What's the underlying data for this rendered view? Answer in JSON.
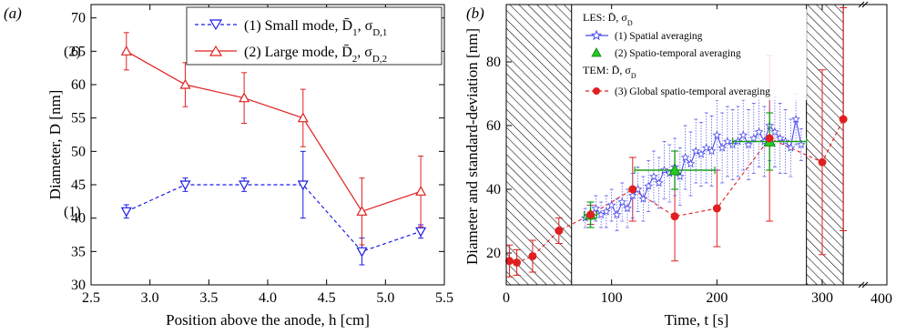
{
  "chart_data": [
    {
      "type": "line",
      "panel_label": "(a)",
      "xlabel": "Position above the anode, h [cm]",
      "ylabel": "Diameter, D [nm]",
      "xlim": [
        2.5,
        5.5
      ],
      "ylim": [
        30,
        72
      ],
      "xticks": [
        "2.5",
        "3.0",
        "3.5",
        "4.0",
        "4.5",
        "5.0",
        "5.5"
      ],
      "yticks": [
        "30",
        "35",
        "40",
        "45",
        "50",
        "55",
        "60",
        "65",
        "70"
      ],
      "grid": false,
      "legend_position": "top-right",
      "series": [
        {
          "name": "(1) Small mode, D̄",
          "name_sub": "1",
          "name_sigma": "σ",
          "name_sigma_sub": "D,1",
          "side_label": "(1)",
          "color": "#1a1ae6",
          "dash": true,
          "marker": "triangle-down",
          "x": [
            2.8,
            3.3,
            3.8,
            4.3,
            4.8,
            5.3
          ],
          "y": [
            41,
            45,
            45,
            45,
            35,
            38
          ],
          "err": [
            1,
            1,
            1,
            5,
            2,
            1
          ]
        },
        {
          "name": "(2) Large mode, D̄",
          "name_sub": "2",
          "name_sigma": "σ",
          "name_sigma_sub": "D,2",
          "side_label": "(2)",
          "color": "#e02020",
          "dash": false,
          "marker": "triangle-up",
          "x": [
            2.8,
            3.3,
            3.8,
            4.3,
            4.8,
            5.3
          ],
          "y": [
            65,
            60,
            58,
            55,
            41,
            44
          ],
          "err": [
            2.8,
            3.3,
            3.8,
            4.3,
            5,
            5.3
          ]
        }
      ]
    },
    {
      "type": "line",
      "panel_label": "(b)",
      "xlabel": "Time, t [s]",
      "ylabel": "Diameter and standard-deviation [nm]",
      "xlim": [
        0,
        320
      ],
      "ylim": [
        10,
        98
      ],
      "xticks": [
        "0",
        "100",
        "200",
        "300"
      ],
      "yticks": [
        "20",
        "40",
        "60",
        "80"
      ],
      "extra_xtick": "400",
      "grid": false,
      "legend_position": "top-left",
      "hatched_regions": [
        [
          0,
          62
        ],
        [
          285,
          320
        ]
      ],
      "legend_groups": [
        {
          "title": "LES: D̄, σ",
          "title_sub": "D"
        },
        {
          "title": "TEM: D̄, σ",
          "title_sub": "D"
        }
      ],
      "series": [
        {
          "name": "(1) Spatial averaging",
          "color": "#4a4aee",
          "marker": "star",
          "x": [
            75,
            80,
            85,
            90,
            95,
            100,
            105,
            110,
            115,
            120,
            125,
            130,
            135,
            140,
            145,
            150,
            155,
            160,
            165,
            170,
            175,
            180,
            185,
            190,
            195,
            200,
            205,
            210,
            215,
            220,
            225,
            230,
            235,
            240,
            245,
            250,
            255,
            260,
            265,
            270,
            275,
            280
          ],
          "y": [
            31,
            32,
            34,
            32,
            33,
            35,
            32,
            36,
            34,
            38,
            40,
            37,
            41,
            44,
            42,
            46,
            45,
            47,
            44,
            50,
            48,
            52,
            51,
            53,
            52,
            57,
            53,
            55,
            54,
            55,
            57,
            54,
            56,
            58,
            55,
            60,
            58,
            56,
            55,
            53,
            62,
            54
          ],
          "err": [
            3,
            3,
            4,
            4,
            5,
            5,
            5,
            6,
            6,
            7,
            7,
            7,
            8,
            8,
            8,
            9,
            9,
            9,
            9,
            10,
            10,
            10,
            10,
            11,
            11,
            11,
            11,
            11,
            11,
            11,
            11,
            11,
            11,
            11,
            11,
            11,
            11,
            11,
            10,
            9,
            8,
            5
          ]
        },
        {
          "name": "(2) Spatio-temporal averaging",
          "color": "#1aa01a",
          "marker": "filled-triangle",
          "x": [
            80,
            160,
            250
          ],
          "y": [
            32,
            46,
            55
          ],
          "xerr": [
            6,
            38,
            35
          ],
          "err": [
            4,
            6,
            9
          ]
        },
        {
          "name": "(3) Global spatio-temporal averaging",
          "color": "#e02020",
          "marker": "filled-circle",
          "x": [
            3,
            10,
            25,
            50,
            80,
            120,
            160,
            200,
            250,
            300,
            320
          ],
          "y": [
            17.5,
            17,
            19,
            27,
            32,
            40,
            31.5,
            34,
            56,
            48.5,
            62
          ],
          "err": [
            5,
            4,
            5,
            4,
            3,
            10,
            14,
            12,
            26,
            29,
            35
          ]
        }
      ]
    }
  ]
}
